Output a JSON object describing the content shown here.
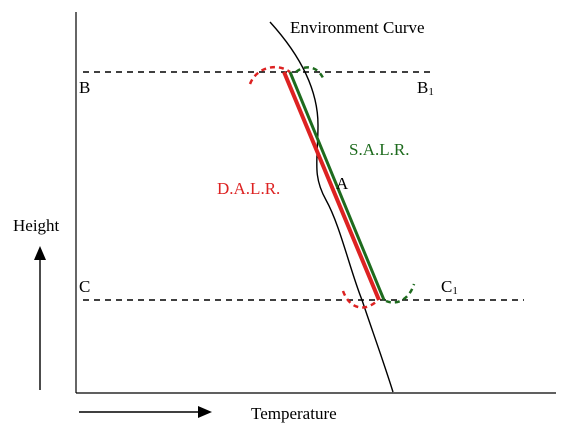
{
  "labels": {
    "environment_curve": "Environment Curve",
    "b": "B",
    "b1_main": "B",
    "b1_sub": "1",
    "c": "C",
    "c1_main": "C",
    "c1_sub": "1",
    "a": "A",
    "salr": "S.A.L.R.",
    "dalr": "D.A.L.R.",
    "height": "Height",
    "temperature": "Temperature"
  },
  "colors": {
    "dalr": "#dd2222",
    "salr": "#1e6b1e",
    "environment": "#000000"
  }
}
